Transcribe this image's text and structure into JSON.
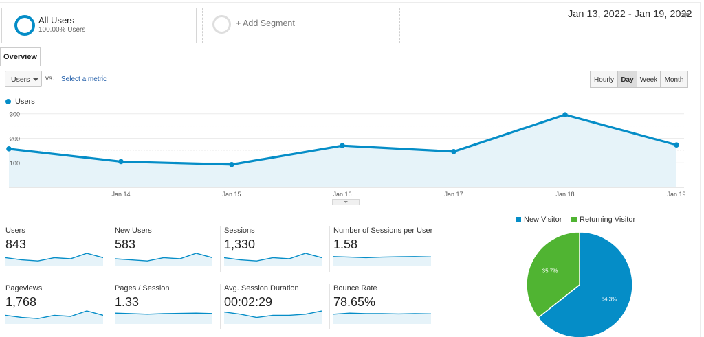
{
  "segments": {
    "all_users": {
      "title": "All Users",
      "subtitle": "100.00% Users"
    },
    "add_segment": "+ Add Segment"
  },
  "date_range": "Jan 13, 2022 - Jan 19, 2022",
  "tabs": [
    "Overview"
  ],
  "metric_selector": {
    "primary": "Users",
    "vs": "vs.",
    "select": "Select a metric"
  },
  "granularity": [
    {
      "label": "Hourly",
      "active": false
    },
    {
      "label": "Day",
      "active": true
    },
    {
      "label": "Week",
      "active": false
    },
    {
      "label": "Month",
      "active": false
    }
  ],
  "chart_data": [
    {
      "type": "area",
      "series": [
        {
          "name": "Users",
          "values": [
            157,
            105,
            93,
            170,
            146,
            296,
            173
          ]
        }
      ],
      "categories": [
        "…",
        "Jan 14",
        "Jan 15",
        "Jan 16",
        "Jan 17",
        "Jan 18",
        "Jan 19"
      ],
      "yticks": [
        "100",
        "200",
        "300"
      ],
      "ylim": [
        0,
        330
      ],
      "color": "#058dc7",
      "grid": true,
      "legend": "top-left"
    },
    {
      "type": "pie",
      "series": [
        {
          "name": "New Visitor",
          "value": 64.3,
          "label": "64.3%",
          "color": "#058dc7"
        },
        {
          "name": "Returning Visitor",
          "value": 35.7,
          "label": "35.7%",
          "color": "#50b432"
        }
      ],
      "legend": "top"
    }
  ],
  "scorecards": [
    {
      "name": "Users",
      "value": "843",
      "spark": [
        6,
        4,
        3,
        6,
        5,
        10,
        6
      ]
    },
    {
      "name": "New Users",
      "value": "583",
      "spark": [
        5,
        4,
        3,
        6,
        5,
        10,
        6
      ]
    },
    {
      "name": "Sessions",
      "value": "1,330",
      "spark": [
        6,
        4,
        3,
        6,
        5,
        10,
        6
      ]
    },
    {
      "name": "Number of Sessions per User",
      "value": "1.58",
      "spark": [
        7,
        6.5,
        6,
        6.5,
        6.8,
        7,
        6.7
      ]
    },
    {
      "name": "Pageviews",
      "value": "1,768",
      "spark": [
        6,
        4,
        3,
        6,
        5,
        10,
        6
      ]
    },
    {
      "name": "Pages / Session",
      "value": "1.33",
      "spark": [
        8,
        7.5,
        7,
        7.5,
        7.8,
        8,
        7.6
      ]
    },
    {
      "name": "Avg. Session Duration",
      "value": "00:02:29",
      "spark": [
        9,
        7,
        4,
        6,
        6,
        7,
        10
      ]
    },
    {
      "name": "Bounce Rate",
      "value": "78.65%",
      "spark": [
        7,
        8,
        7.5,
        7.5,
        7.2,
        7.5,
        7.3
      ]
    }
  ]
}
